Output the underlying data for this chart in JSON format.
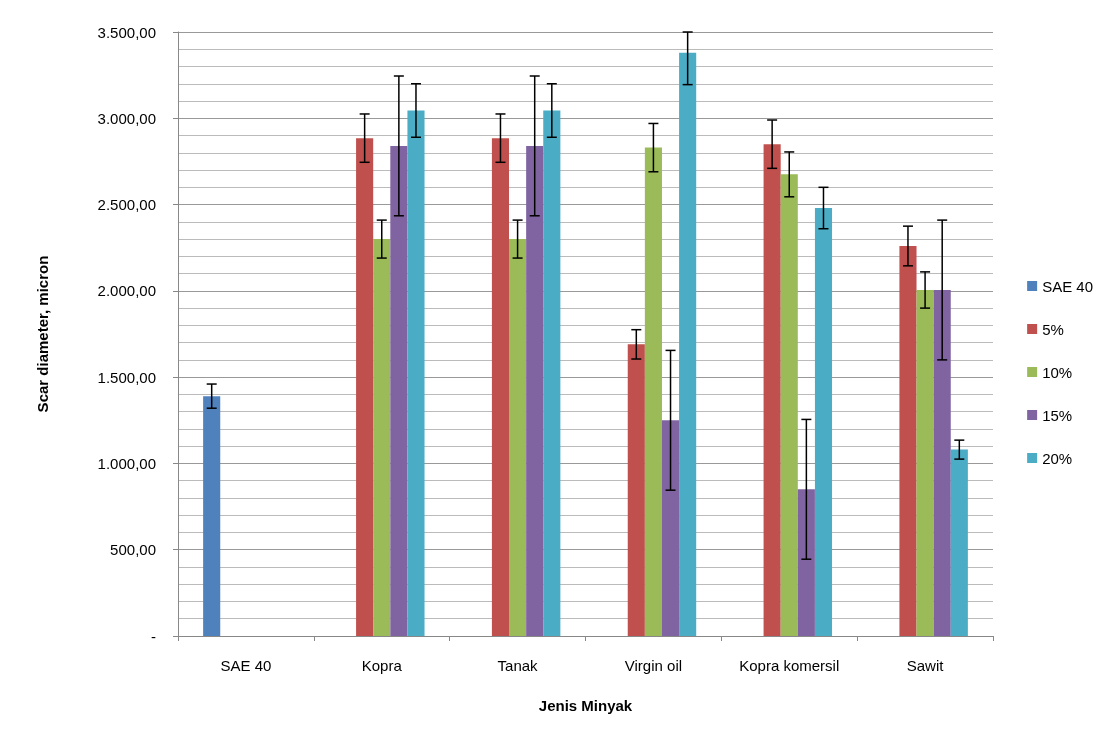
{
  "chart_data": {
    "type": "bar",
    "xlabel": "Jenis Minyak",
    "ylabel": "Scar diameter, micron",
    "categories": [
      "SAE 40",
      "Kopra",
      "Tanak",
      "Virgin oil",
      "Kopra komersil",
      "Sawit"
    ],
    "series": [
      {
        "name": "SAE 40",
        "color": "#4f81bd",
        "values": [
          1390,
          null,
          null,
          null,
          null,
          null
        ],
        "errors": [
          70,
          null,
          null,
          null,
          null,
          null
        ]
      },
      {
        "name": "5%",
        "color": "#c0504d",
        "values": [
          null,
          2885,
          2885,
          1690,
          2850,
          2260
        ],
        "errors": [
          null,
          140,
          140,
          85,
          140,
          115
        ]
      },
      {
        "name": "10%",
        "color": "#9bbb59",
        "values": [
          null,
          2300,
          2300,
          2830,
          2675,
          2005
        ],
        "errors": [
          null,
          110,
          110,
          140,
          130,
          105
        ]
      },
      {
        "name": "15%",
        "color": "#8064a2",
        "values": [
          null,
          2840,
          2840,
          1250,
          850,
          2005
        ],
        "errors": [
          null,
          405,
          405,
          405,
          405,
          405
        ]
      },
      {
        "name": "20%",
        "color": "#4bacc6",
        "values": [
          null,
          3045,
          3045,
          3380,
          2480,
          1080
        ],
        "errors": [
          null,
          155,
          155,
          [
            3195,
            3500
          ],
          120,
          55
        ]
      }
    ],
    "ylim": [
      0,
      3500
    ],
    "yticks": [
      {
        "value": 0,
        "label": "-"
      },
      {
        "value": 500,
        "label": "500,00"
      },
      {
        "value": 1000,
        "label": "1.000,00"
      },
      {
        "value": 1500,
        "label": "1.500,00"
      },
      {
        "value": 2000,
        "label": "2.000,00"
      },
      {
        "value": 2500,
        "label": "2.500,00"
      },
      {
        "value": 3000,
        "label": "3.000,00"
      },
      {
        "value": 3500,
        "label": "3.500,00"
      }
    ],
    "grid": true,
    "legend": "right"
  }
}
